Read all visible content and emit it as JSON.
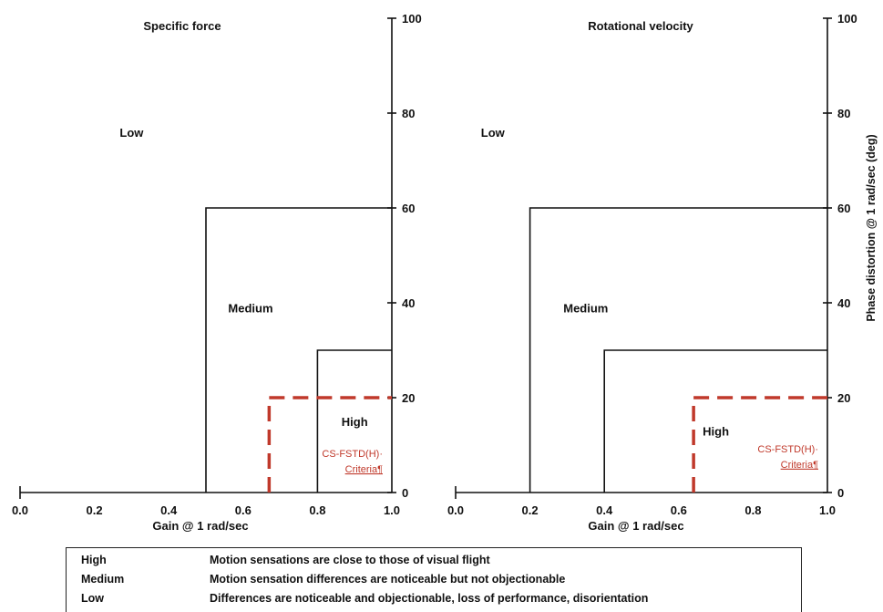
{
  "chart_data": [
    {
      "type": "line",
      "title": "Specific force",
      "xlabel": "Gain @ 1 rad/sec",
      "ylabel": "",
      "xlim": [
        0.0,
        1.0
      ],
      "ylim": [
        0,
        100
      ],
      "x_ticks": [
        "0.0",
        "0.2",
        "0.4",
        "0.6",
        "0.8",
        "1.0"
      ],
      "y_ticks": [
        "0",
        "20",
        "40",
        "60",
        "80",
        "100"
      ],
      "regions": [
        {
          "name": "Low",
          "label_at": [
            0.3,
            75
          ]
        },
        {
          "name": "Medium",
          "label_at": [
            0.62,
            38
          ]
        },
        {
          "name": "High",
          "label_at": [
            0.9,
            14
          ]
        }
      ],
      "series": [
        {
          "name": "Medium boundary",
          "x": [
            0.5,
            0.5,
            1.0
          ],
          "y": [
            0,
            60,
            60
          ],
          "style": "solid",
          "color": "#111111"
        },
        {
          "name": "High boundary",
          "x": [
            0.8,
            0.8,
            1.0
          ],
          "y": [
            0,
            30,
            30
          ],
          "style": "solid",
          "color": "#111111"
        },
        {
          "name": "CS-FSTD(H) Criteria",
          "x": [
            0.67,
            0.67,
            1.0
          ],
          "y": [
            0,
            20,
            20
          ],
          "style": "dashed",
          "color": "#c0392b"
        }
      ],
      "annotations": [
        {
          "line1": "CS-FSTD(H)·",
          "line2": "Criteria¶",
          "color": "#c0392b"
        }
      ]
    },
    {
      "type": "line",
      "title": "Rotational velocity",
      "xlabel": "Gain @ 1 rad/sec",
      "ylabel": "Phase distortion @ 1 rad/sec (deg)",
      "xlim": [
        0.0,
        1.0
      ],
      "ylim": [
        0,
        100
      ],
      "x_ticks": [
        "0.0",
        "0.2",
        "0.4",
        "0.6",
        "0.8",
        "1.0"
      ],
      "y_ticks": [
        "0",
        "20",
        "40",
        "60",
        "80",
        "100"
      ],
      "regions": [
        {
          "name": "Low",
          "label_at": [
            0.1,
            75
          ]
        },
        {
          "name": "Medium",
          "label_at": [
            0.35,
            38
          ]
        },
        {
          "name": "High",
          "label_at": [
            0.7,
            12
          ]
        }
      ],
      "series": [
        {
          "name": "Medium boundary",
          "x": [
            0.2,
            0.2,
            1.0
          ],
          "y": [
            0,
            60,
            60
          ],
          "style": "solid",
          "color": "#111111"
        },
        {
          "name": "High boundary",
          "x": [
            0.4,
            0.4,
            1.0
          ],
          "y": [
            0,
            30,
            30
          ],
          "style": "solid",
          "color": "#111111"
        },
        {
          "name": "CS-FSTD(H) Criteria",
          "x": [
            0.64,
            0.64,
            1.0
          ],
          "y": [
            0,
            20,
            20
          ],
          "style": "dashed",
          "color": "#c0392b"
        }
      ],
      "annotations": [
        {
          "line1": "CS-FSTD(H)·",
          "line2": "Criteria¶",
          "color": "#c0392b"
        }
      ]
    }
  ],
  "legend": [
    {
      "level": "High",
      "description": "Motion sensations are close to those of visual flight"
    },
    {
      "level": "Medium",
      "description": "Motion sensation differences are noticeable but not objectionable"
    },
    {
      "level": "Low",
      "description": "Differences are noticeable and objectionable, loss of performance, disorientation"
    }
  ]
}
